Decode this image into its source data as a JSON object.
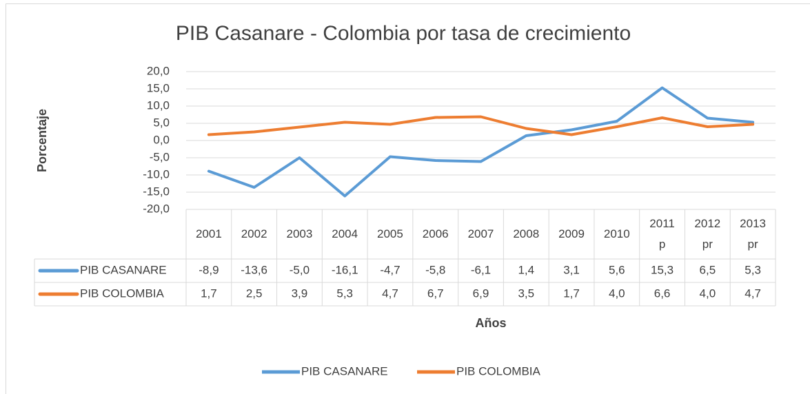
{
  "chart_data": {
    "type": "line",
    "title": "PIB Casanare - Colombia por tasa de crecimiento",
    "x_label": "Años",
    "y_label": "Porcentaje",
    "categories": [
      "2001",
      "2002",
      "2003",
      "2004",
      "2005",
      "2006",
      "2007",
      "2008",
      "2009",
      "2010",
      "2011 p",
      "2012 pr",
      "2013 pr"
    ],
    "series": [
      {
        "name": "PIB CASANARE",
        "color": "#5b9bd5",
        "values": [
          -8.9,
          -13.6,
          -5.0,
          -16.1,
          -4.7,
          -5.8,
          -6.1,
          1.4,
          3.1,
          5.6,
          15.3,
          6.5,
          5.3
        ],
        "value_labels": [
          "-8,9",
          "-13,6",
          "-5,0",
          "-16,1",
          "-4,7",
          "-5,8",
          "-6,1",
          "1,4",
          "3,1",
          "5,6",
          "15,3",
          "6,5",
          "5,3"
        ]
      },
      {
        "name": "PIB COLOMBIA",
        "color": "#ed7d31",
        "values": [
          1.7,
          2.5,
          3.9,
          5.3,
          4.7,
          6.7,
          6.9,
          3.5,
          1.7,
          4.0,
          6.6,
          4.0,
          4.7
        ],
        "value_labels": [
          "1,7",
          "2,5",
          "3,9",
          "5,3",
          "4,7",
          "6,7",
          "6,9",
          "3,5",
          "1,7",
          "4,0",
          "6,6",
          "4,0",
          "4,7"
        ]
      }
    ],
    "ylim": [
      -20,
      20
    ],
    "yticks": [
      {
        "value": -20,
        "label": "-20,0"
      },
      {
        "value": -15,
        "label": "-15,0"
      },
      {
        "value": -10,
        "label": "-10,0"
      },
      {
        "value": -5,
        "label": "-5,0"
      },
      {
        "value": 0,
        "label": "0,0"
      },
      {
        "value": 5,
        "label": "5,0"
      },
      {
        "value": 10,
        "label": "10,0"
      },
      {
        "value": 15,
        "label": "15,0"
      },
      {
        "value": 20,
        "label": "20,0"
      }
    ],
    "grid": true,
    "legend": "bottom"
  }
}
